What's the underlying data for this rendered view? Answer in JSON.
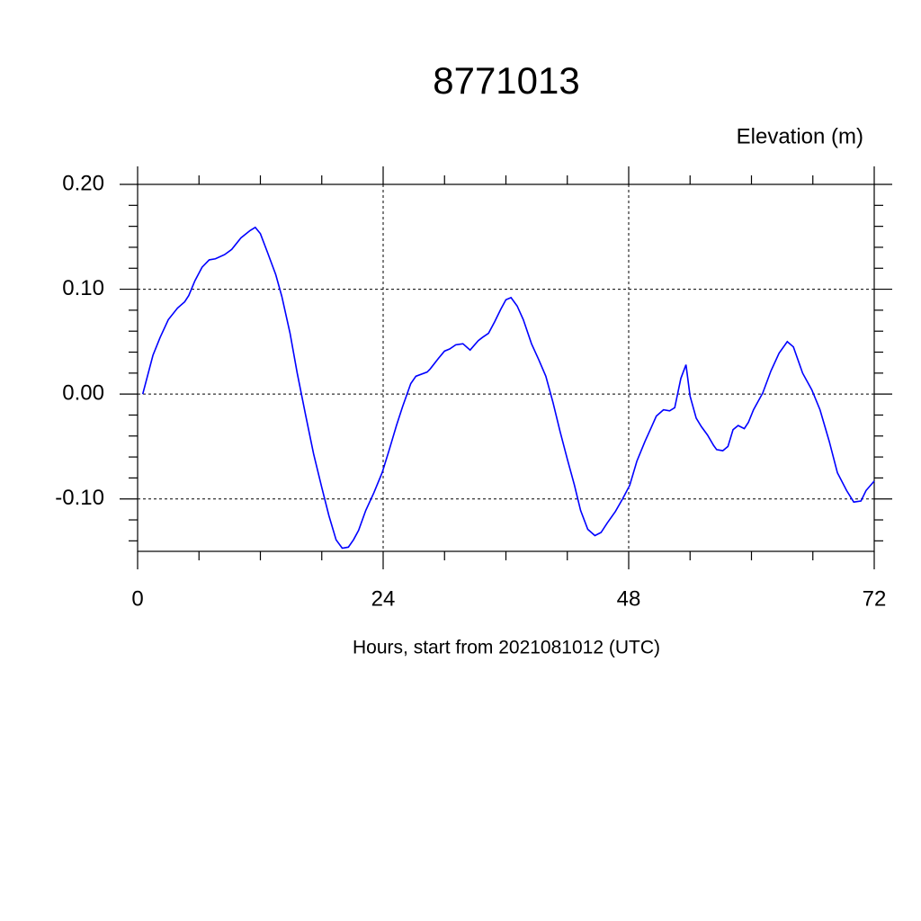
{
  "chart_data": {
    "type": "line",
    "title": "8771013",
    "ylabel": "Elevation (m)",
    "xlabel": "Hours, start from 2021081012 (UTC)",
    "xlim": [
      0,
      72
    ],
    "ylim": [
      -0.15,
      0.2
    ],
    "xticks": [
      0,
      24,
      48,
      72
    ],
    "yticks": [
      {
        "value": -0.1,
        "label": "-0.10"
      },
      {
        "value": 0,
        "label": "0.00"
      },
      {
        "value": 0.1,
        "label": "0.10"
      },
      {
        "value": 0.2,
        "label": "0.20"
      }
    ],
    "xminorticks": [
      6,
      12,
      18,
      30,
      36,
      42,
      54,
      60,
      66
    ],
    "yminorticks": [
      -0.14,
      -0.12,
      -0.08,
      -0.06,
      -0.04,
      -0.02,
      0.02,
      0.04,
      0.06,
      0.08,
      0.12,
      0.14,
      0.16,
      0.18
    ],
    "grid": true,
    "series": [
      {
        "color": "#0000ff",
        "x": [
          0.5,
          1.5,
          2.2,
          3.0,
          3.9,
          4.6,
          5.0,
          5.6,
          6.3,
          7.0,
          7.6,
          8.5,
          9.2,
          10.1,
          11.0,
          11.5,
          12.0,
          12.7,
          13.5,
          14.1,
          14.9,
          15.6,
          16.4,
          17.2,
          18.0,
          18.7,
          19.4,
          20.0,
          20.6,
          21.1,
          21.6,
          22.3,
          23.1,
          23.9,
          24.6,
          25.3,
          25.9,
          26.7,
          27.2,
          28.3,
          28.6,
          29.4,
          30.0,
          30.5,
          31.1,
          31.8,
          32.5,
          33.3,
          33.7,
          34.3,
          34.9,
          35.5,
          36.0,
          36.5,
          37.1,
          37.7,
          38.5,
          39.2,
          39.9,
          40.6,
          41.3,
          42.0,
          42.7,
          43.3,
          44.0,
          44.7,
          45.3,
          45.9,
          46.7,
          47.4,
          48.1,
          48.8,
          49.6,
          50.2,
          50.7,
          51.4,
          52.0,
          52.5,
          53.1,
          53.6,
          54.0,
          54.6,
          55.1,
          55.7,
          56.3,
          56.6,
          57.2,
          57.7,
          58.2,
          58.7,
          59.3,
          59.7,
          60.2,
          61.1,
          61.9,
          62.7,
          63.5,
          64.1,
          65.0,
          65.9,
          66.7,
          67.6,
          68.4,
          69.3,
          70.0,
          70.7,
          71.2,
          72.0
        ],
        "values": [
          0.0,
          0.037,
          0.054,
          0.071,
          0.082,
          0.088,
          0.094,
          0.108,
          0.121,
          0.128,
          0.129,
          0.133,
          0.138,
          0.149,
          0.156,
          0.159,
          0.153,
          0.135,
          0.114,
          0.093,
          0.058,
          0.02,
          -0.019,
          -0.057,
          -0.089,
          -0.116,
          -0.139,
          -0.147,
          -0.146,
          -0.139,
          -0.13,
          -0.111,
          -0.094,
          -0.075,
          -0.053,
          -0.03,
          -0.012,
          0.01,
          0.017,
          0.021,
          0.024,
          0.034,
          0.041,
          0.043,
          0.047,
          0.048,
          0.042,
          0.051,
          0.054,
          0.058,
          0.069,
          0.081,
          0.09,
          0.092,
          0.084,
          0.071,
          0.048,
          0.033,
          0.017,
          -0.008,
          -0.036,
          -0.062,
          -0.087,
          -0.111,
          -0.129,
          -0.135,
          -0.132,
          -0.123,
          -0.112,
          -0.1,
          -0.087,
          -0.064,
          -0.045,
          -0.032,
          -0.021,
          -0.015,
          -0.016,
          -0.013,
          0.015,
          0.028,
          -0.002,
          -0.023,
          -0.031,
          -0.039,
          -0.049,
          -0.053,
          -0.054,
          -0.05,
          -0.034,
          -0.03,
          -0.033,
          -0.027,
          -0.015,
          0.001,
          0.022,
          0.039,
          0.05,
          0.045,
          0.02,
          0.004,
          -0.015,
          -0.045,
          -0.075,
          -0.092,
          -0.103,
          -0.102,
          -0.092,
          -0.083
        ]
      }
    ]
  }
}
